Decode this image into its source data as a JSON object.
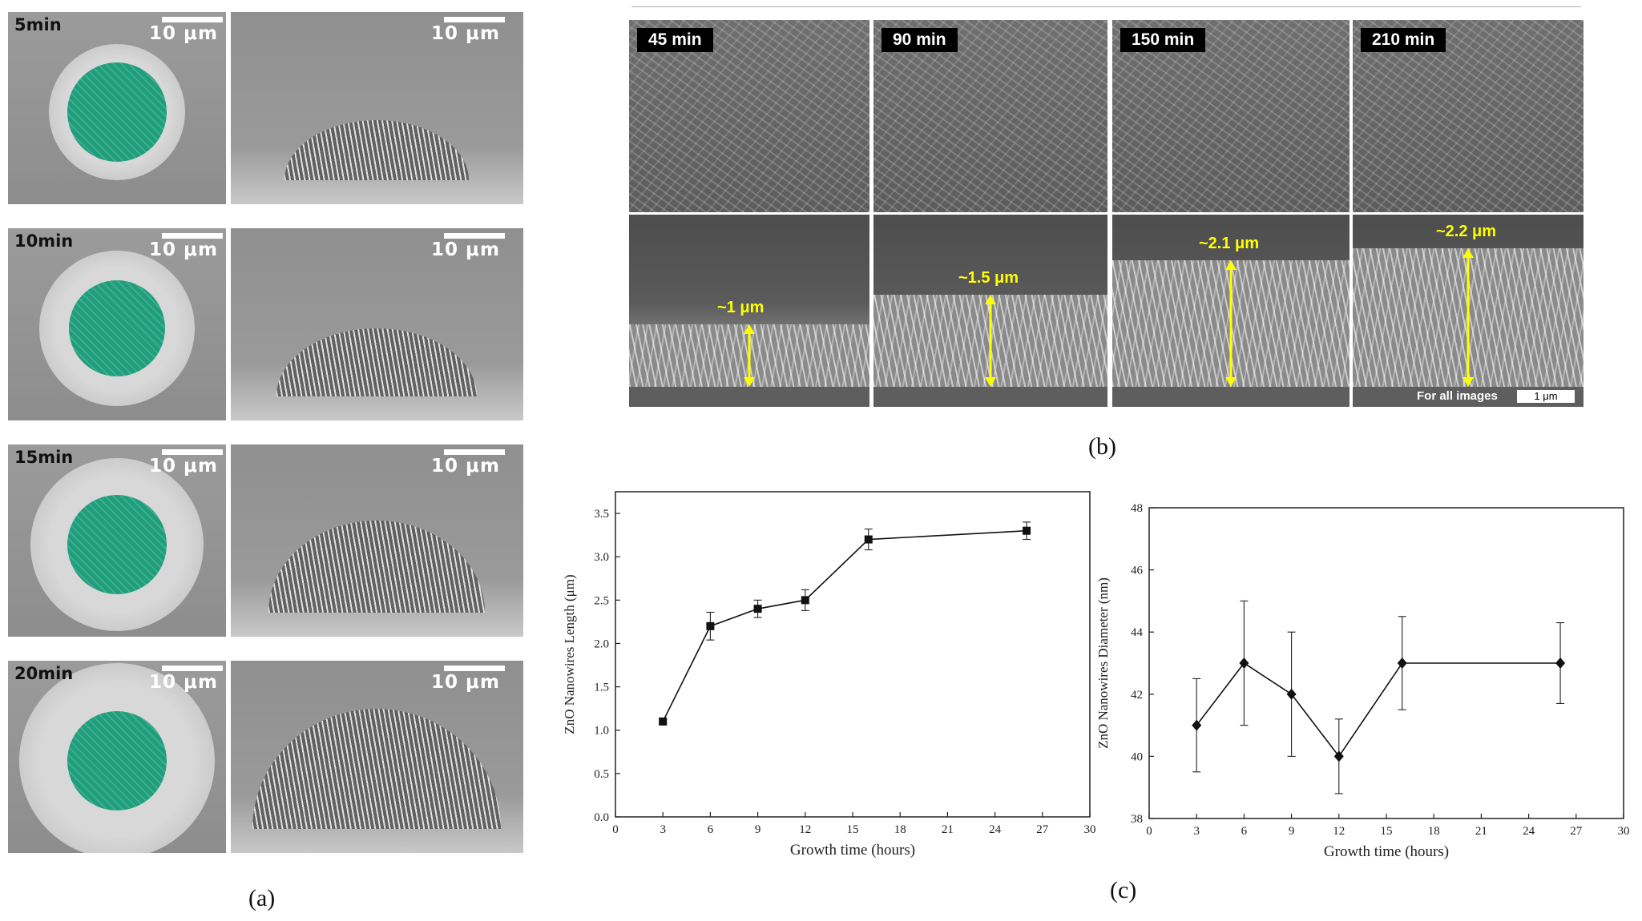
{
  "panel_a": {
    "caption": "(a)",
    "rows": [
      {
        "time": "5min",
        "scale_left": "10 μm",
        "scale_right": "10 μm"
      },
      {
        "time": "10min",
        "scale_left": "10 μm",
        "scale_right": "10 μm"
      },
      {
        "time": "15min",
        "scale_left": "10 μm",
        "scale_right": "10 μm"
      },
      {
        "time": "20min",
        "scale_left": "10 μm",
        "scale_right": "10 μm"
      }
    ],
    "colors": {
      "cluster": "#1f9e7c"
    }
  },
  "panel_b": {
    "caption": "(b)",
    "columns": [
      {
        "time": "45 min",
        "height": "~1 μm"
      },
      {
        "time": "90 min",
        "height": "~1.5 μm"
      },
      {
        "time": "150 min",
        "height": "~2.1 μm"
      },
      {
        "time": "210 min",
        "height": "~2.2 μm"
      }
    ],
    "scale_note": "For all images",
    "scale_value": "1 μm",
    "colors": {
      "arrow": "#ffff00"
    }
  },
  "panel_c": {
    "caption": "(c)"
  },
  "chart_data": [
    {
      "type": "line",
      "xlabel": "Growth time (hours)",
      "ylabel": "ZnO Nanowires Length (μm)",
      "xlim": [
        0,
        30
      ],
      "ylim": [
        0.0,
        3.75
      ],
      "x_ticks": [
        0,
        3,
        6,
        9,
        12,
        15,
        18,
        21,
        24,
        27,
        30
      ],
      "y_ticks": [
        0.0,
        0.5,
        1.0,
        1.5,
        2.0,
        2.5,
        3.0,
        3.5
      ],
      "y_tick_labels": [
        "0.0",
        "0.5",
        "1.0",
        "1.5",
        "2.0",
        "2.5",
        "3.0",
        "3.5"
      ],
      "marker": "square",
      "x": [
        3,
        6,
        9,
        12,
        16,
        26
      ],
      "y": [
        1.1,
        2.2,
        2.4,
        2.5,
        3.2,
        3.3
      ],
      "err": [
        0.03,
        0.16,
        0.1,
        0.12,
        0.12,
        0.1
      ]
    },
    {
      "type": "line",
      "xlabel": "Growth time (hours)",
      "ylabel": "ZnO Nanowires Diameter (nm)",
      "xlim": [
        0,
        30
      ],
      "ylim": [
        38,
        48
      ],
      "x_ticks": [
        0,
        3,
        6,
        9,
        12,
        15,
        18,
        21,
        24,
        27,
        30
      ],
      "y_ticks": [
        38,
        40,
        42,
        44,
        46,
        48
      ],
      "y_tick_labels": [
        "38",
        "40",
        "42",
        "44",
        "46",
        "48"
      ],
      "marker": "diamond",
      "x": [
        3,
        6,
        9,
        12,
        16,
        26
      ],
      "y": [
        41,
        43,
        42,
        40,
        43,
        43
      ],
      "err": [
        1.5,
        2.0,
        2.0,
        1.2,
        1.5,
        1.3
      ]
    }
  ]
}
